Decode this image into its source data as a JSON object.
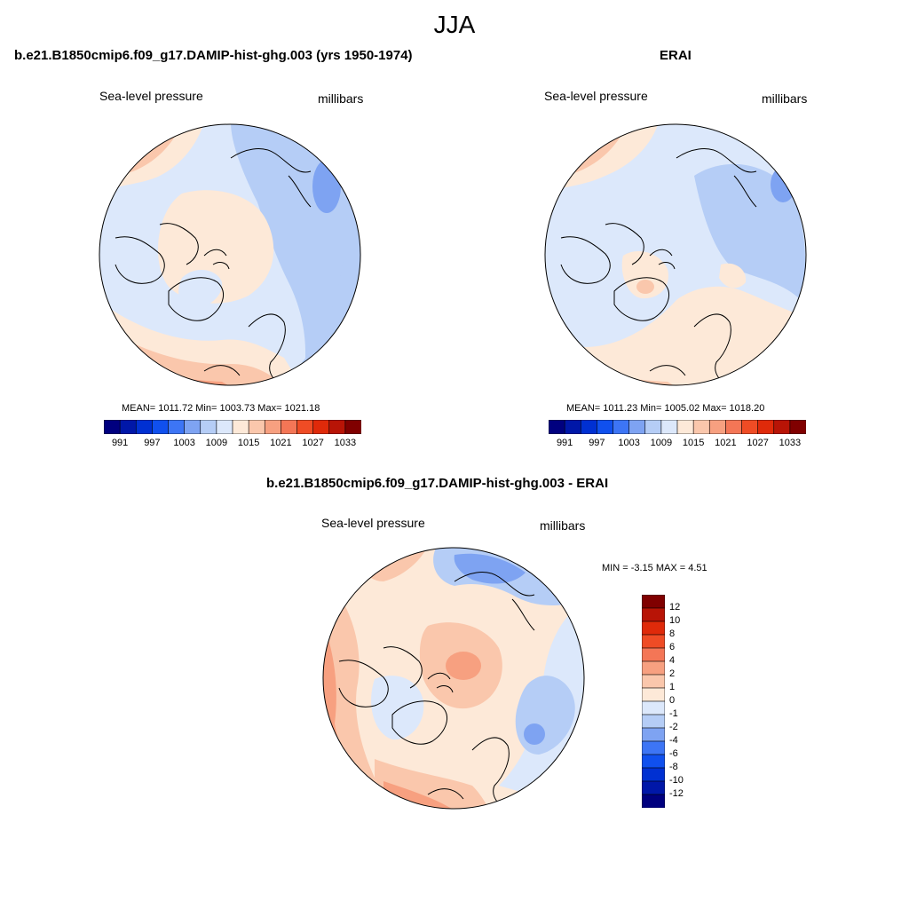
{
  "figure": {
    "title": "JJA"
  },
  "panels": {
    "model": {
      "title": "b.e21.B1850cmip6.f09_g17.DAMIP-hist-ghg.003 (yrs 1950-1974)",
      "left_label": "Sea-level pressure",
      "right_label": "millibars",
      "stats": "MEAN= 1011.72  Min= 1003.73  Max= 1021.18"
    },
    "obs": {
      "title": "ERAI",
      "left_label": "Sea-level pressure",
      "right_label": "millibars",
      "stats": "MEAN= 1011.23  Min= 1005.02  Max= 1018.20"
    },
    "diff": {
      "title": "b.e21.B1850cmip6.f09_g17.DAMIP-hist-ghg.003 - ERAI",
      "left_label": "Sea-level pressure",
      "right_label": "millibars",
      "stats": "MIN =  -3.15 MAX =   4.51"
    }
  },
  "colorbars": {
    "abs": {
      "labels": [
        "991",
        "997",
        "1003",
        "1009",
        "1015",
        "1021",
        "1027",
        "1033"
      ],
      "colors": [
        "#00007f",
        "#0017a8",
        "#0030d2",
        "#1050ee",
        "#3d75f5",
        "#7ea3f2",
        "#b5cdf6",
        "#dce8fb",
        "#fde9d8",
        "#fac7ac",
        "#f7a080",
        "#f47656",
        "#ef4c25",
        "#df2a0a",
        "#b81406",
        "#800000"
      ]
    },
    "diff": {
      "labels": [
        "12",
        "10",
        "8",
        "6",
        "4",
        "2",
        "1",
        "0",
        "-1",
        "-2",
        "-4",
        "-6",
        "-8",
        "-10",
        "-12"
      ],
      "colors": [
        "#800000",
        "#b81406",
        "#df2a0a",
        "#ef4c25",
        "#f47656",
        "#f7a080",
        "#fac7ac",
        "#fde9d8",
        "#dce8fb",
        "#b5cdf6",
        "#7ea3f2",
        "#3d75f5",
        "#1050ee",
        "#0030d2",
        "#0017a8",
        "#00007f"
      ]
    }
  }
}
